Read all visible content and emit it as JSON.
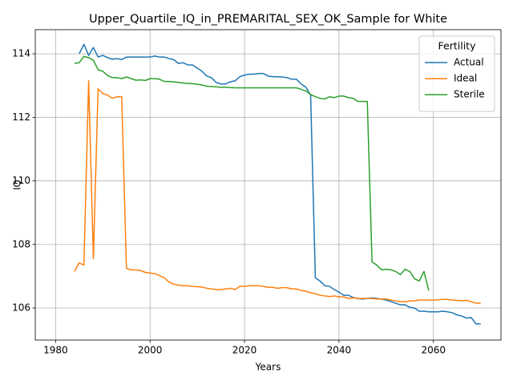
{
  "chart_data": {
    "type": "line",
    "title": "Upper_Quartile_IQ_in_PREMARITAL_SEX_OK_Sample for White",
    "x_label": "Years",
    "y_label": "IQ",
    "x": [
      1984,
      1985,
      1986,
      1987,
      1988,
      1989,
      1990,
      1991,
      1992,
      1993,
      1994,
      1995,
      1996,
      1997,
      1998,
      1999,
      2000,
      2001,
      2002,
      2003,
      2004,
      2005,
      2006,
      2007,
      2008,
      2009,
      2010,
      2011,
      2012,
      2013,
      2014,
      2015,
      2016,
      2017,
      2018,
      2019,
      2020,
      2021,
      2022,
      2023,
      2024,
      2025,
      2026,
      2027,
      2028,
      2029,
      2030,
      2031,
      2032,
      2033,
      2034,
      2035,
      2036,
      2037,
      2038,
      2039,
      2040,
      2041,
      2042,
      2043,
      2044,
      2045,
      2046,
      2047,
      2048,
      2049,
      2050,
      2051,
      2052,
      2053,
      2054,
      2055,
      2056,
      2057,
      2058,
      2059,
      2060,
      2061,
      2062,
      2063,
      2064,
      2065,
      2066,
      2067,
      2068,
      2069,
      2070
    ],
    "series": [
      {
        "name": "Actual",
        "color": "#1f77b4",
        "values": [
          null,
          114.0,
          114.3,
          113.95,
          114.2,
          113.9,
          113.95,
          113.88,
          113.83,
          113.85,
          113.82,
          113.9,
          113.9,
          113.9,
          113.9,
          113.9,
          113.9,
          113.93,
          113.9,
          113.9,
          113.85,
          113.82,
          113.7,
          113.72,
          113.65,
          113.65,
          113.55,
          113.45,
          113.3,
          113.25,
          113.1,
          113.05,
          113.05,
          113.12,
          113.15,
          113.28,
          113.33,
          113.36,
          113.36,
          113.38,
          113.38,
          113.3,
          113.28,
          113.28,
          113.27,
          113.25,
          113.2,
          113.2,
          113.05,
          112.95,
          112.7,
          106.95,
          106.85,
          106.7,
          106.68,
          106.58,
          106.5,
          106.4,
          106.4,
          106.33,
          106.3,
          106.28,
          106.3,
          106.32,
          106.3,
          106.28,
          106.25,
          106.2,
          106.15,
          106.1,
          106.1,
          106.02,
          106.0,
          105.9,
          105.9,
          105.88,
          105.88,
          105.88,
          105.9,
          105.88,
          105.85,
          105.78,
          105.75,
          105.68,
          105.7,
          105.5,
          105.5
        ]
      },
      {
        "name": "Ideal",
        "color": "#ff7f0e",
        "values": [
          107.15,
          107.42,
          107.35,
          113.15,
          107.55,
          112.9,
          112.75,
          112.7,
          112.6,
          112.65,
          112.65,
          107.25,
          107.2,
          107.2,
          107.18,
          107.12,
          107.1,
          107.08,
          107.02,
          106.95,
          106.82,
          106.75,
          106.72,
          106.7,
          106.7,
          106.68,
          106.67,
          106.66,
          106.62,
          106.6,
          106.58,
          106.58,
          106.6,
          106.62,
          106.58,
          106.68,
          106.68,
          106.7,
          106.7,
          106.7,
          106.68,
          106.65,
          106.65,
          106.62,
          106.64,
          106.64,
          106.6,
          106.6,
          106.55,
          106.53,
          106.48,
          106.45,
          106.4,
          106.38,
          106.36,
          106.38,
          106.35,
          106.35,
          106.3,
          106.32,
          106.3,
          106.3,
          106.3,
          106.3,
          106.28,
          106.28,
          106.28,
          106.25,
          106.22,
          106.2,
          106.2,
          106.22,
          106.23,
          106.25,
          106.25,
          106.25,
          106.25,
          106.26,
          106.27,
          106.27,
          106.25,
          106.24,
          106.23,
          106.24,
          106.2,
          106.15,
          106.15
        ]
      },
      {
        "name": "Sterile",
        "color": "#2ca02c",
        "values": [
          113.7,
          113.72,
          113.92,
          113.88,
          113.8,
          113.5,
          113.45,
          113.32,
          113.25,
          113.25,
          113.22,
          113.27,
          113.22,
          113.17,
          113.18,
          113.16,
          113.22,
          113.22,
          113.2,
          113.13,
          113.13,
          113.12,
          113.1,
          113.08,
          113.07,
          113.06,
          113.04,
          113.02,
          112.98,
          112.97,
          112.96,
          112.95,
          112.95,
          112.94,
          112.93,
          112.93,
          112.93,
          112.93,
          112.93,
          112.93,
          112.93,
          112.93,
          112.93,
          112.93,
          112.93,
          112.93,
          112.93,
          112.93,
          112.88,
          112.83,
          112.72,
          112.65,
          112.6,
          112.58,
          112.65,
          112.62,
          112.67,
          112.67,
          112.62,
          112.6,
          112.5,
          112.5,
          112.5,
          107.45,
          107.35,
          107.2,
          107.22,
          107.2,
          107.15,
          107.05,
          107.22,
          107.15,
          106.92,
          106.85,
          107.15,
          106.55,
          null,
          null,
          null,
          null,
          null,
          null,
          null,
          null,
          null,
          null,
          null
        ]
      }
    ],
    "xlim": [
      1975.7,
      2074.3
    ],
    "xticks": [
      1980,
      2000,
      2020,
      2040,
      2060
    ],
    "ylim": [
      104.99,
      114.76
    ],
    "yticks": [
      106,
      108,
      110,
      112,
      114
    ],
    "grid": true,
    "legend": "upper right",
    "legend_title": "Fertility"
  }
}
